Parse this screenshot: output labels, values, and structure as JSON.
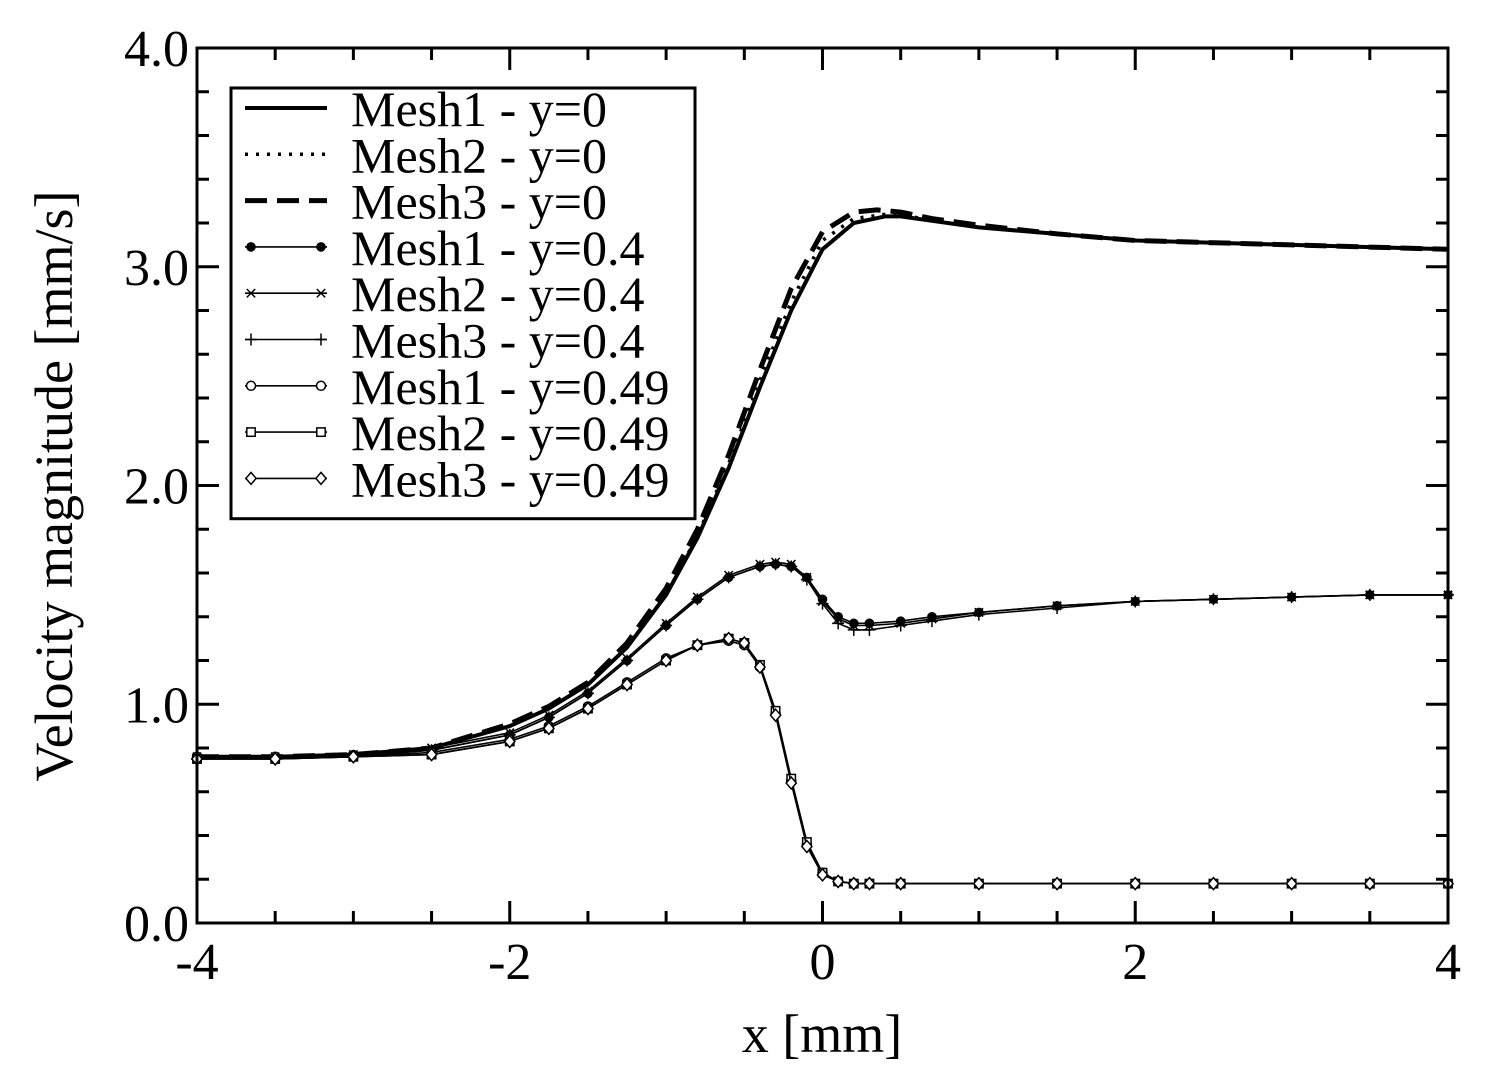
{
  "chart_data": {
    "type": "line",
    "title": "",
    "xlabel": "x [mm]",
    "ylabel": "Velocity magnitude [mm/s]",
    "xlim": [
      -4,
      4
    ],
    "ylim": [
      0,
      4
    ],
    "x_ticks": [
      -4,
      -2,
      0,
      2,
      4
    ],
    "x_tick_labels": [
      "-4",
      "-2",
      "0",
      "2",
      "4"
    ],
    "y_ticks": [
      0,
      1,
      2,
      3,
      4
    ],
    "y_tick_labels": [
      "0.0",
      "1.0",
      "2.0",
      "3.0",
      "4.0"
    ],
    "grid": false,
    "legend_position": "top-left",
    "series": [
      {
        "name": "Mesh1 - y=0",
        "style": "solid",
        "marker": "none",
        "x": [
          -4,
          -3.5,
          -3,
          -2.5,
          -2,
          -1.75,
          -1.5,
          -1.25,
          -1,
          -0.8,
          -0.6,
          -0.4,
          -0.2,
          0,
          0.2,
          0.4,
          0.5,
          0.7,
          1,
          1.5,
          2,
          2.5,
          3,
          3.5,
          4
        ],
        "values": [
          0.76,
          0.76,
          0.77,
          0.8,
          0.9,
          0.98,
          1.09,
          1.26,
          1.5,
          1.76,
          2.08,
          2.45,
          2.8,
          3.08,
          3.2,
          3.23,
          3.23,
          3.21,
          3.18,
          3.15,
          3.12,
          3.11,
          3.1,
          3.09,
          3.08
        ]
      },
      {
        "name": "Mesh2 - y=0",
        "style": "dotted",
        "marker": "none",
        "x": [
          -4,
          -3.5,
          -3,
          -2.5,
          -2,
          -1.75,
          -1.5,
          -1.25,
          -1,
          -0.8,
          -0.6,
          -0.4,
          -0.2,
          0,
          0.2,
          0.4,
          0.5,
          0.7,
          1,
          1.5,
          2,
          2.5,
          3,
          3.5,
          4
        ],
        "values": [
          0.76,
          0.76,
          0.77,
          0.8,
          0.9,
          0.98,
          1.09,
          1.26,
          1.5,
          1.77,
          2.1,
          2.48,
          2.84,
          3.12,
          3.22,
          3.24,
          3.24,
          3.21,
          3.18,
          3.15,
          3.12,
          3.11,
          3.1,
          3.09,
          3.08
        ]
      },
      {
        "name": "Mesh3 - y=0",
        "style": "dashed",
        "marker": "none",
        "x": [
          -4,
          -3.5,
          -3,
          -2.5,
          -2,
          -1.75,
          -1.5,
          -1.25,
          -1,
          -0.8,
          -0.6,
          -0.4,
          -0.2,
          0,
          0.2,
          0.35,
          0.5,
          0.7,
          1,
          1.5,
          2,
          2.5,
          3,
          3.5,
          4
        ],
        "values": [
          0.76,
          0.76,
          0.77,
          0.8,
          0.91,
          0.99,
          1.1,
          1.28,
          1.53,
          1.8,
          2.14,
          2.53,
          2.9,
          3.16,
          3.25,
          3.26,
          3.25,
          3.22,
          3.19,
          3.15,
          3.12,
          3.11,
          3.1,
          3.09,
          3.08
        ]
      },
      {
        "name": "Mesh1 - y=0.4",
        "style": "solid",
        "marker": "filled-circle",
        "x": [
          -4,
          -3.5,
          -3,
          -2.5,
          -2,
          -1.75,
          -1.5,
          -1.25,
          -1,
          -0.8,
          -0.6,
          -0.4,
          -0.3,
          -0.2,
          -0.1,
          0,
          0.1,
          0.2,
          0.3,
          0.5,
          0.7,
          1,
          1.5,
          2,
          2.5,
          3,
          3.5,
          4
        ],
        "values": [
          0.76,
          0.76,
          0.77,
          0.79,
          0.86,
          0.94,
          1.05,
          1.2,
          1.36,
          1.48,
          1.58,
          1.63,
          1.64,
          1.63,
          1.58,
          1.48,
          1.4,
          1.37,
          1.37,
          1.38,
          1.4,
          1.42,
          1.45,
          1.47,
          1.48,
          1.49,
          1.5,
          1.5
        ]
      },
      {
        "name": "Mesh2 - y=0.4",
        "style": "solid",
        "marker": "x",
        "x": [
          -4,
          -3.5,
          -3,
          -2.5,
          -2,
          -1.75,
          -1.5,
          -1.25,
          -1,
          -0.8,
          -0.6,
          -0.4,
          -0.3,
          -0.2,
          -0.1,
          0,
          0.1,
          0.2,
          0.3,
          0.5,
          0.7,
          1,
          1.5,
          2,
          2.5,
          3,
          3.5,
          4
        ],
        "values": [
          0.76,
          0.76,
          0.77,
          0.8,
          0.87,
          0.95,
          1.06,
          1.21,
          1.37,
          1.49,
          1.59,
          1.64,
          1.65,
          1.64,
          1.58,
          1.47,
          1.39,
          1.36,
          1.36,
          1.37,
          1.39,
          1.42,
          1.45,
          1.47,
          1.48,
          1.49,
          1.5,
          1.5
        ]
      },
      {
        "name": "Mesh3 - y=0.4",
        "style": "solid",
        "marker": "plus",
        "x": [
          -4,
          -3.5,
          -3,
          -2.5,
          -2,
          -1.75,
          -1.5,
          -1.25,
          -1,
          -0.8,
          -0.6,
          -0.4,
          -0.3,
          -0.2,
          -0.1,
          0,
          0.1,
          0.2,
          0.3,
          0.5,
          0.7,
          1,
          1.5,
          2,
          2.5,
          3,
          3.5,
          4
        ],
        "values": [
          0.75,
          0.75,
          0.76,
          0.79,
          0.86,
          0.94,
          1.05,
          1.2,
          1.36,
          1.48,
          1.58,
          1.63,
          1.64,
          1.63,
          1.57,
          1.46,
          1.37,
          1.34,
          1.34,
          1.36,
          1.38,
          1.41,
          1.44,
          1.47,
          1.48,
          1.49,
          1.5,
          1.5
        ]
      },
      {
        "name": "Mesh1 - y=0.49",
        "style": "solid",
        "marker": "open-circle",
        "x": [
          -4,
          -3.5,
          -3,
          -2.5,
          -2,
          -1.75,
          -1.5,
          -1.25,
          -1,
          -0.8,
          -0.6,
          -0.5,
          -0.4,
          -0.3,
          -0.2,
          -0.1,
          0,
          0.1,
          0.2,
          0.3,
          0.5,
          1,
          1.5,
          2,
          2.5,
          3,
          3.5,
          4
        ],
        "values": [
          0.76,
          0.76,
          0.76,
          0.78,
          0.84,
          0.9,
          0.99,
          1.1,
          1.21,
          1.27,
          1.29,
          1.27,
          1.17,
          0.96,
          0.65,
          0.36,
          0.23,
          0.19,
          0.18,
          0.18,
          0.18,
          0.18,
          0.18,
          0.18,
          0.18,
          0.18,
          0.18,
          0.18
        ]
      },
      {
        "name": "Mesh2 - y=0.49",
        "style": "solid",
        "marker": "open-square",
        "x": [
          -4,
          -3.5,
          -3,
          -2.5,
          -2,
          -1.75,
          -1.5,
          -1.25,
          -1,
          -0.8,
          -0.6,
          -0.5,
          -0.4,
          -0.3,
          -0.2,
          -0.1,
          0,
          0.1,
          0.2,
          0.3,
          0.5,
          1,
          1.5,
          2,
          2.5,
          3,
          3.5,
          4
        ],
        "values": [
          0.75,
          0.75,
          0.76,
          0.77,
          0.83,
          0.89,
          0.98,
          1.09,
          1.2,
          1.27,
          1.3,
          1.28,
          1.18,
          0.97,
          0.66,
          0.37,
          0.23,
          0.19,
          0.18,
          0.18,
          0.18,
          0.18,
          0.18,
          0.18,
          0.18,
          0.18,
          0.18,
          0.18
        ]
      },
      {
        "name": "Mesh3 - y=0.49",
        "style": "solid",
        "marker": "open-diamond",
        "x": [
          -4,
          -3.5,
          -3,
          -2.5,
          -2,
          -1.75,
          -1.5,
          -1.25,
          -1,
          -0.8,
          -0.6,
          -0.5,
          -0.4,
          -0.3,
          -0.2,
          -0.1,
          0,
          0.1,
          0.2,
          0.3,
          0.5,
          1,
          1.5,
          2,
          2.5,
          3,
          3.5,
          4
        ],
        "values": [
          0.75,
          0.75,
          0.76,
          0.77,
          0.83,
          0.89,
          0.98,
          1.09,
          1.2,
          1.27,
          1.3,
          1.28,
          1.17,
          0.95,
          0.64,
          0.35,
          0.22,
          0.19,
          0.18,
          0.18,
          0.18,
          0.18,
          0.18,
          0.18,
          0.18,
          0.18,
          0.18,
          0.18
        ]
      }
    ]
  }
}
